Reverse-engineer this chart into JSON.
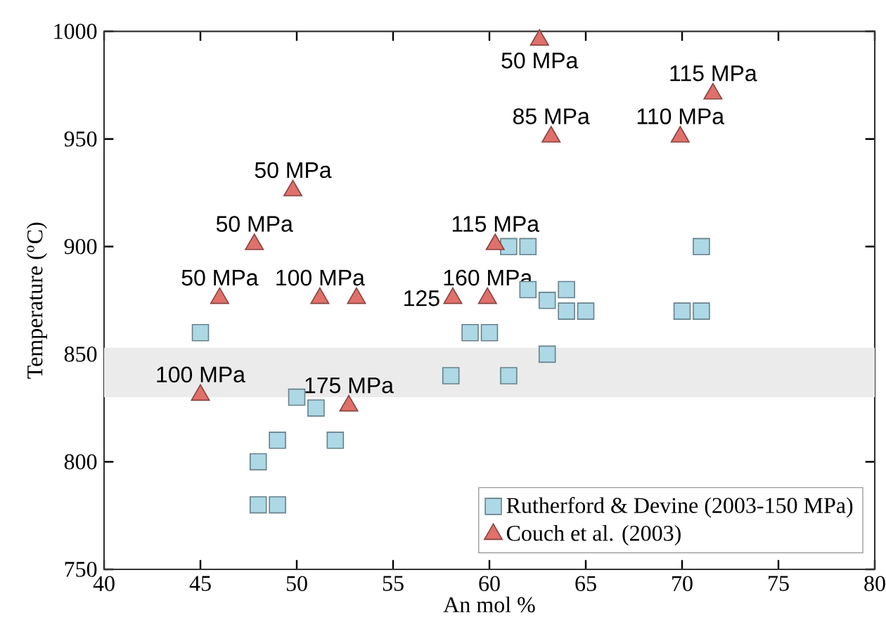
{
  "chart_data": {
    "type": "scatter",
    "xlabel": "An mol %",
    "ylabel": "Temperature ($^{o}$C)",
    "xlim": [
      40,
      80
    ],
    "ylim": [
      750,
      1000
    ],
    "xticks": [
      40,
      45,
      50,
      55,
      60,
      65,
      70,
      75,
      80
    ],
    "yticks": [
      750,
      800,
      850,
      900,
      950,
      1000
    ],
    "legend": "bottom right",
    "series": [
      {
        "name": "Rutherford & Devine (2003-150 MPa)",
        "color": "#add8e6",
        "marker": "square",
        "x": [
          45,
          48,
          48,
          49,
          49,
          50,
          51,
          52,
          58,
          59,
          60,
          61,
          61,
          62,
          62,
          63,
          63,
          64,
          64,
          65,
          70,
          71,
          71
        ],
        "values": [
          860,
          800,
          780,
          780,
          810,
          830,
          825,
          810,
          840,
          860,
          860,
          840,
          900,
          900,
          880,
          875,
          850,
          880,
          870,
          870,
          870,
          870,
          900
        ]
      },
      {
        "name": "Couch et al. (2003)",
        "color": "#e0706a",
        "marker": "triangle",
        "x": [
          62.6,
          63.2,
          71.6,
          69.9,
          49.8,
          47.8,
          60.3,
          46,
          51.2,
          53.1,
          58.1,
          59.9,
          45,
          52.7
        ],
        "values": [
          996,
          951,
          971,
          951,
          926,
          901,
          901,
          876,
          876,
          876,
          876,
          876,
          831,
          826
        ]
      }
    ],
    "bands": [
      {
        "axis": "y",
        "from": 830,
        "to": 853,
        "color": "#ebebeb"
      }
    ],
    "annotations": [
      {
        "text": "50 MPa",
        "x": 62.6,
        "y": 996
      },
      {
        "text": "85 MPa",
        "x": 63.2,
        "y": 951
      },
      {
        "text": "115 MPa",
        "x": 71.6,
        "y": 971
      },
      {
        "text": "110 MPa",
        "x": 69.9,
        "y": 951
      },
      {
        "text": "50 MPa",
        "x": 49.8,
        "y": 926
      },
      {
        "text": "50 MPa",
        "x": 47.8,
        "y": 901
      },
      {
        "text": "115 MPa",
        "x": 60.3,
        "y": 901
      },
      {
        "text": "50 MPa",
        "x": 46,
        "y": 876
      },
      {
        "text": "100 MPa",
        "x": 51.2,
        "y": 876
      },
      {
        "text": "125",
        "x": 58.1,
        "y": 876
      },
      {
        "text": "160 MPa",
        "x": 59.9,
        "y": 876
      },
      {
        "text": "100 MPa",
        "x": 45,
        "y": 831
      },
      {
        "text": "175 MPa",
        "x": 52.7,
        "y": 826
      }
    ]
  }
}
